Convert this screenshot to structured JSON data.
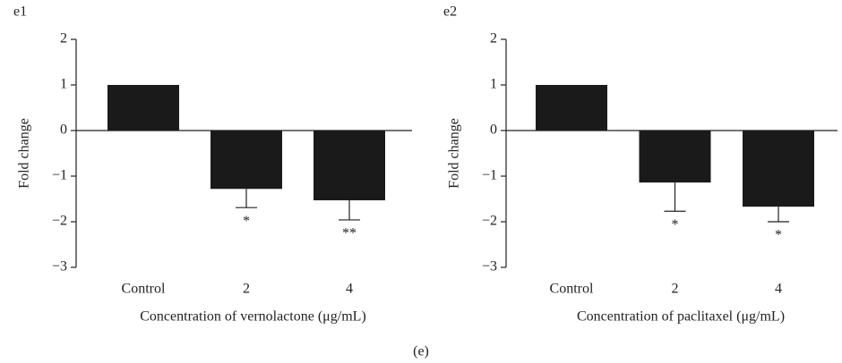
{
  "chart_data": [
    {
      "type": "bar",
      "label": "e1",
      "ylabel": "Fold change",
      "xlabel": "Concentration of vernolactone (μg/mL)",
      "categories": [
        "Control",
        "2",
        "4"
      ],
      "values": [
        1,
        -1.28,
        -1.53
      ],
      "errors": [
        0,
        0.41,
        0.43
      ],
      "annotations": [
        null,
        "*",
        "**"
      ],
      "color": "#1a1a1a",
      "ylim": [
        -3,
        2
      ],
      "yticks": [
        {
          "value": -3,
          "label": "−3"
        },
        {
          "value": -2,
          "label": "−2"
        },
        {
          "value": -1,
          "label": "−1"
        },
        0,
        1,
        2
      ]
    },
    {
      "type": "bar",
      "label": "e2",
      "ylabel": "Fold change",
      "xlabel": "Concentration of paclitaxel (μg/mL)",
      "categories": [
        "Control",
        "2",
        "4"
      ],
      "values": [
        1,
        -1.14,
        -1.67
      ],
      "errors": [
        0,
        0.63,
        0.33
      ],
      "annotations": [
        null,
        "*",
        "*"
      ],
      "color": "#1a1a1a",
      "ylim": [
        -3,
        2
      ],
      "yticks": [
        {
          "value": -3,
          "label": "−3"
        },
        {
          "value": -2,
          "label": "−2"
        },
        {
          "value": -1,
          "label": "−1"
        },
        0,
        1,
        2
      ]
    }
  ],
  "caption": "(e)"
}
